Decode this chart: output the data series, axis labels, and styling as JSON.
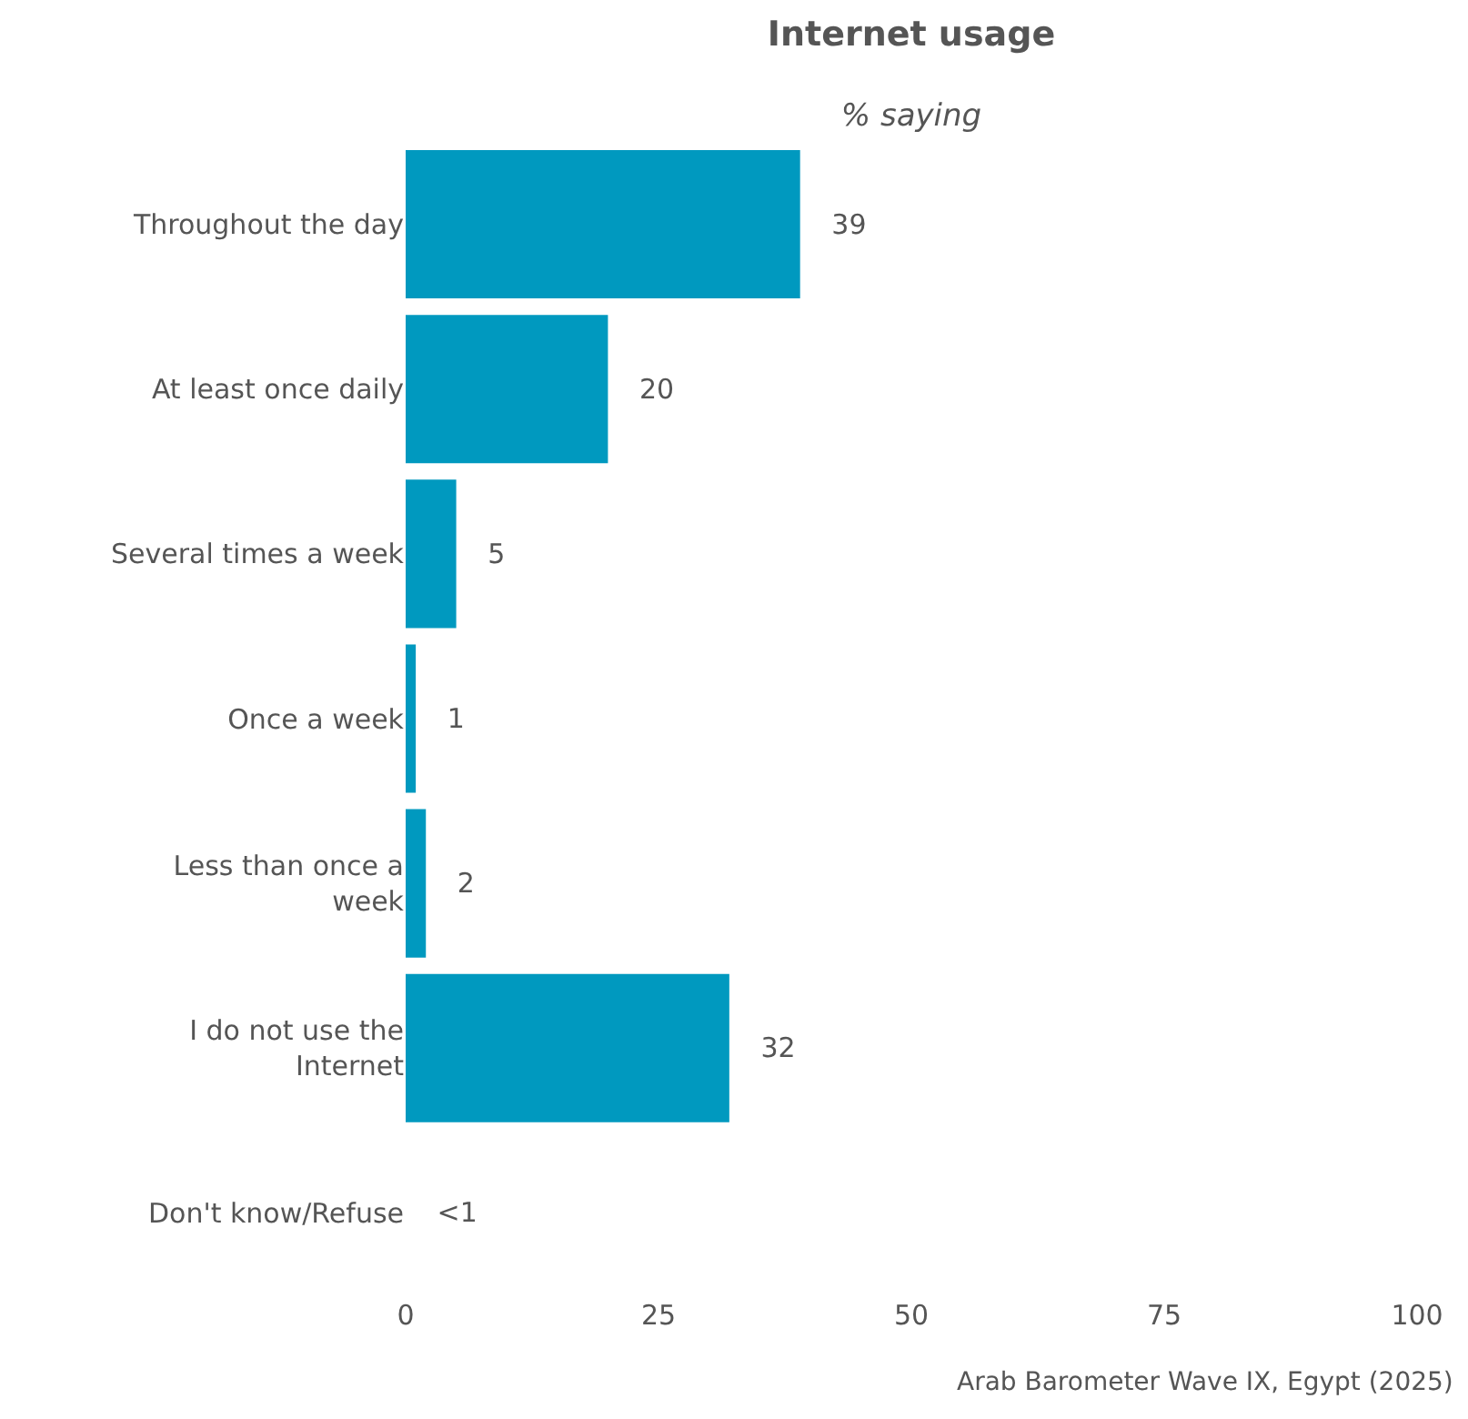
{
  "chart_data": {
    "type": "bar",
    "orientation": "horizontal",
    "title": "Internet usage",
    "subtitle": "% saying",
    "categories": [
      "Throughout the day",
      "At least once daily",
      "Several times a week",
      "Once a week",
      "Less than once a week",
      "I do not use the Internet",
      "Don't know/Refuse"
    ],
    "values": [
      39,
      20,
      5,
      1,
      2,
      32,
      0
    ],
    "value_labels": [
      "39",
      "20",
      "5",
      "1",
      "2",
      "32",
      "<1"
    ],
    "color": "#0099bf",
    "xlim": [
      0,
      100
    ],
    "xticks": [
      0,
      25,
      50,
      75,
      100
    ],
    "grid": false,
    "legend": false,
    "annotations": [
      "Arab Barometer Wave IX, Egypt (2025)"
    ]
  }
}
